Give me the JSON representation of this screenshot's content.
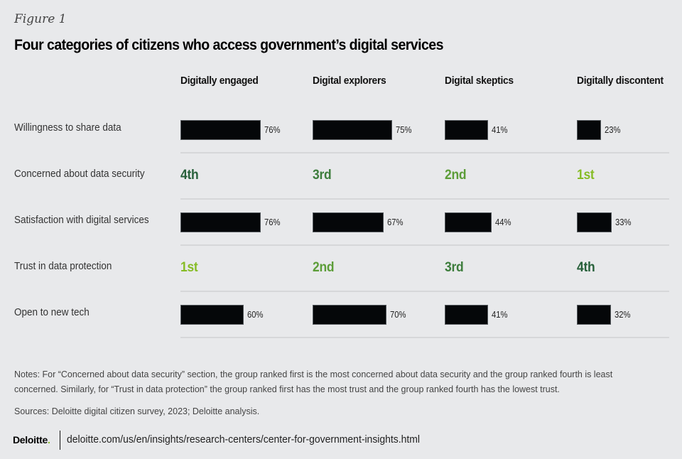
{
  "figure_label": "Figure 1",
  "title": "Four categories of citizens who access government’s digital services",
  "colors": {
    "rank_1st": "#86bc25",
    "rank_2nd": "#5c9d38",
    "rank_3rd": "#3d7d3c",
    "rank_4th": "#27603a",
    "bar": "#050709"
  },
  "chart_data": {
    "type": "table",
    "title": "Four categories of citizens who access government’s digital services",
    "columns": [
      "Digitally engaged",
      "Digital explorers",
      "Digital skeptics",
      "Digitally discontent"
    ],
    "rows": [
      {
        "label": "Willingness to share data",
        "kind": "bar",
        "values": [
          76,
          75,
          41,
          23
        ],
        "display": [
          "76%",
          "75%",
          "41%",
          "23%"
        ]
      },
      {
        "label": "Concerned about data security",
        "kind": "rank",
        "values": [
          4,
          3,
          2,
          1
        ],
        "display": [
          "4th",
          "3rd",
          "2nd",
          "1st"
        ]
      },
      {
        "label": "Satisfaction with digital services",
        "kind": "bar",
        "values": [
          76,
          67,
          44,
          33
        ],
        "display": [
          "76%",
          "67%",
          "44%",
          "33%"
        ]
      },
      {
        "label": "Trust in data protection",
        "kind": "rank",
        "values": [
          1,
          2,
          3,
          4
        ],
        "display": [
          "1st",
          "2nd",
          "3rd",
          "4th"
        ]
      },
      {
        "label": "Open to new tech",
        "kind": "bar",
        "values": [
          60,
          70,
          41,
          32
        ],
        "display": [
          "60%",
          "70%",
          "41%",
          "32%"
        ]
      }
    ],
    "value_unit": "%"
  },
  "notes": "Notes: For “Concerned about data security” section, the group ranked first is the most concerned about data security and the group ranked fourth is least concerned. Similarly, for “Trust in data protection” the group ranked first has the most trust and the group ranked fourth has the lowest trust.",
  "sources": "Sources: Deloitte digital citizen survey, 2023; Deloitte analysis.",
  "footer": {
    "logo_text": "Deloitte",
    "logo_dot": ".",
    "url": "deloitte.com/us/en/insights/research-centers/center-for-government-insights.html"
  }
}
